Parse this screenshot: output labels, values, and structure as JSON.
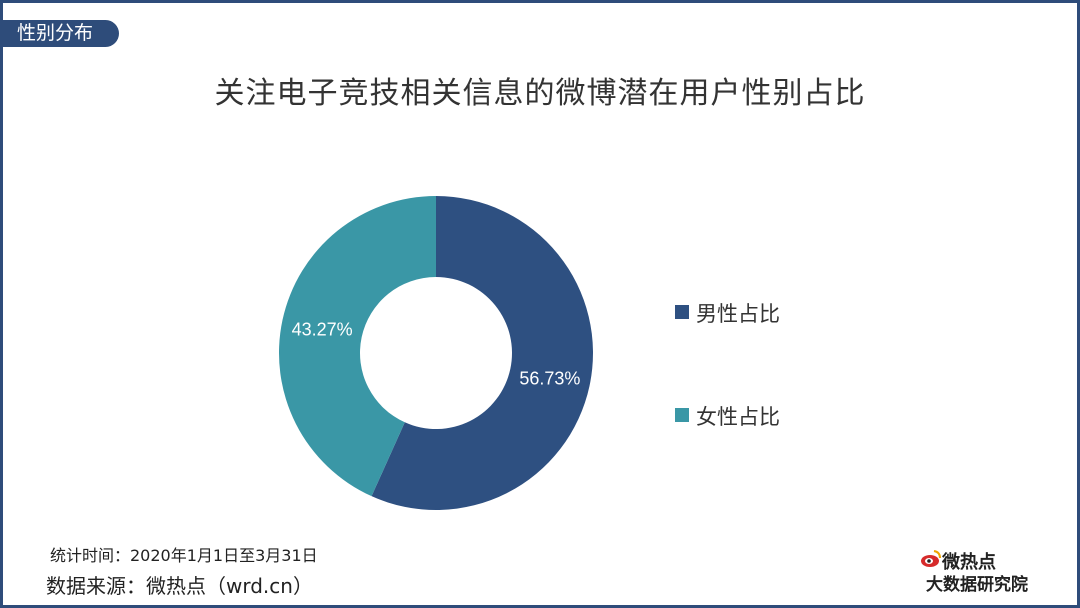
{
  "section_tag": "性别分布",
  "chart_data": {
    "type": "pie",
    "donut": true,
    "title": "关注电子竞技相关信息的微博潜在用户性别占比",
    "slices": [
      {
        "name": "男性占比",
        "value": 56.73,
        "label": "56.73%",
        "color": "#2e5081"
      },
      {
        "name": "女性占比",
        "value": 43.27,
        "label": "43.27%",
        "color": "#3a97a6"
      }
    ],
    "legend_position": "right"
  },
  "footer": {
    "stat_period": "统计时间：2020年1月1日至3月31日",
    "source": "数据来源：微热点（wrd.cn）"
  },
  "logo": {
    "brand": "微热点",
    "subtitle": "大数据研究院"
  }
}
